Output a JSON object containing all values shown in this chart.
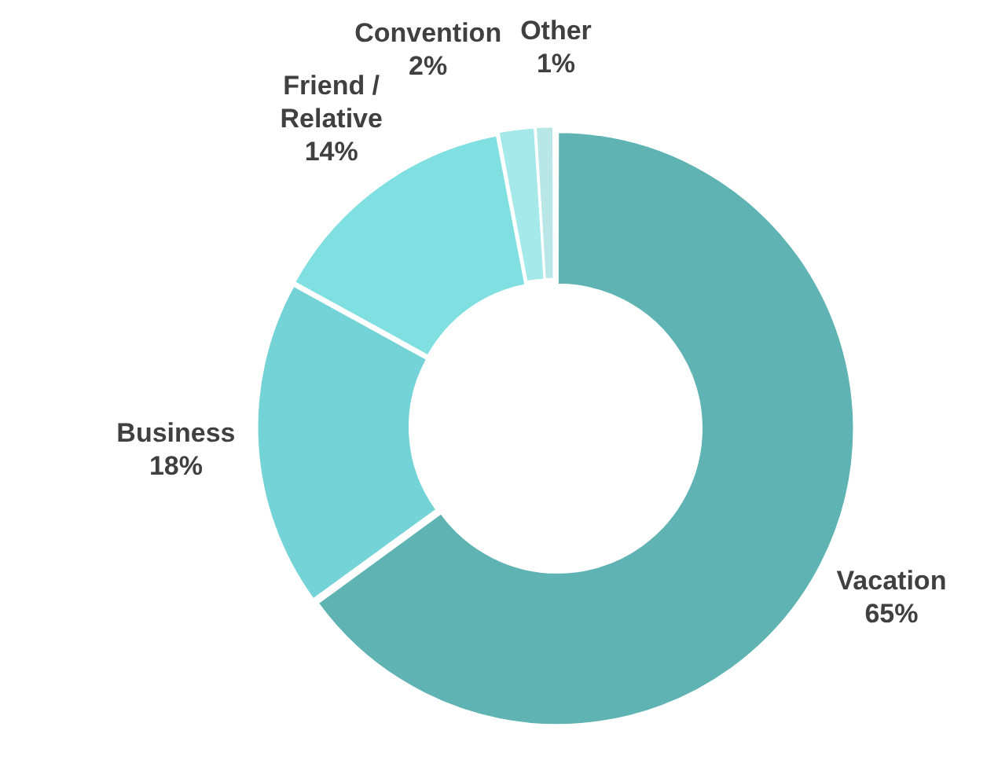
{
  "chart_data": {
    "type": "donut",
    "categories": [
      "Vacation",
      "Business",
      "Friend / Relative",
      "Convention",
      "Other"
    ],
    "values": [
      65,
      18,
      14,
      2,
      1
    ],
    "value_labels": [
      "65%",
      "18%",
      "14%",
      "2%",
      "1%"
    ],
    "colors": [
      "#5fb3b3",
      "#74d3d6",
      "#7fdfe1",
      "#a6e9ea",
      "#b9e6e6"
    ],
    "legend": false
  }
}
